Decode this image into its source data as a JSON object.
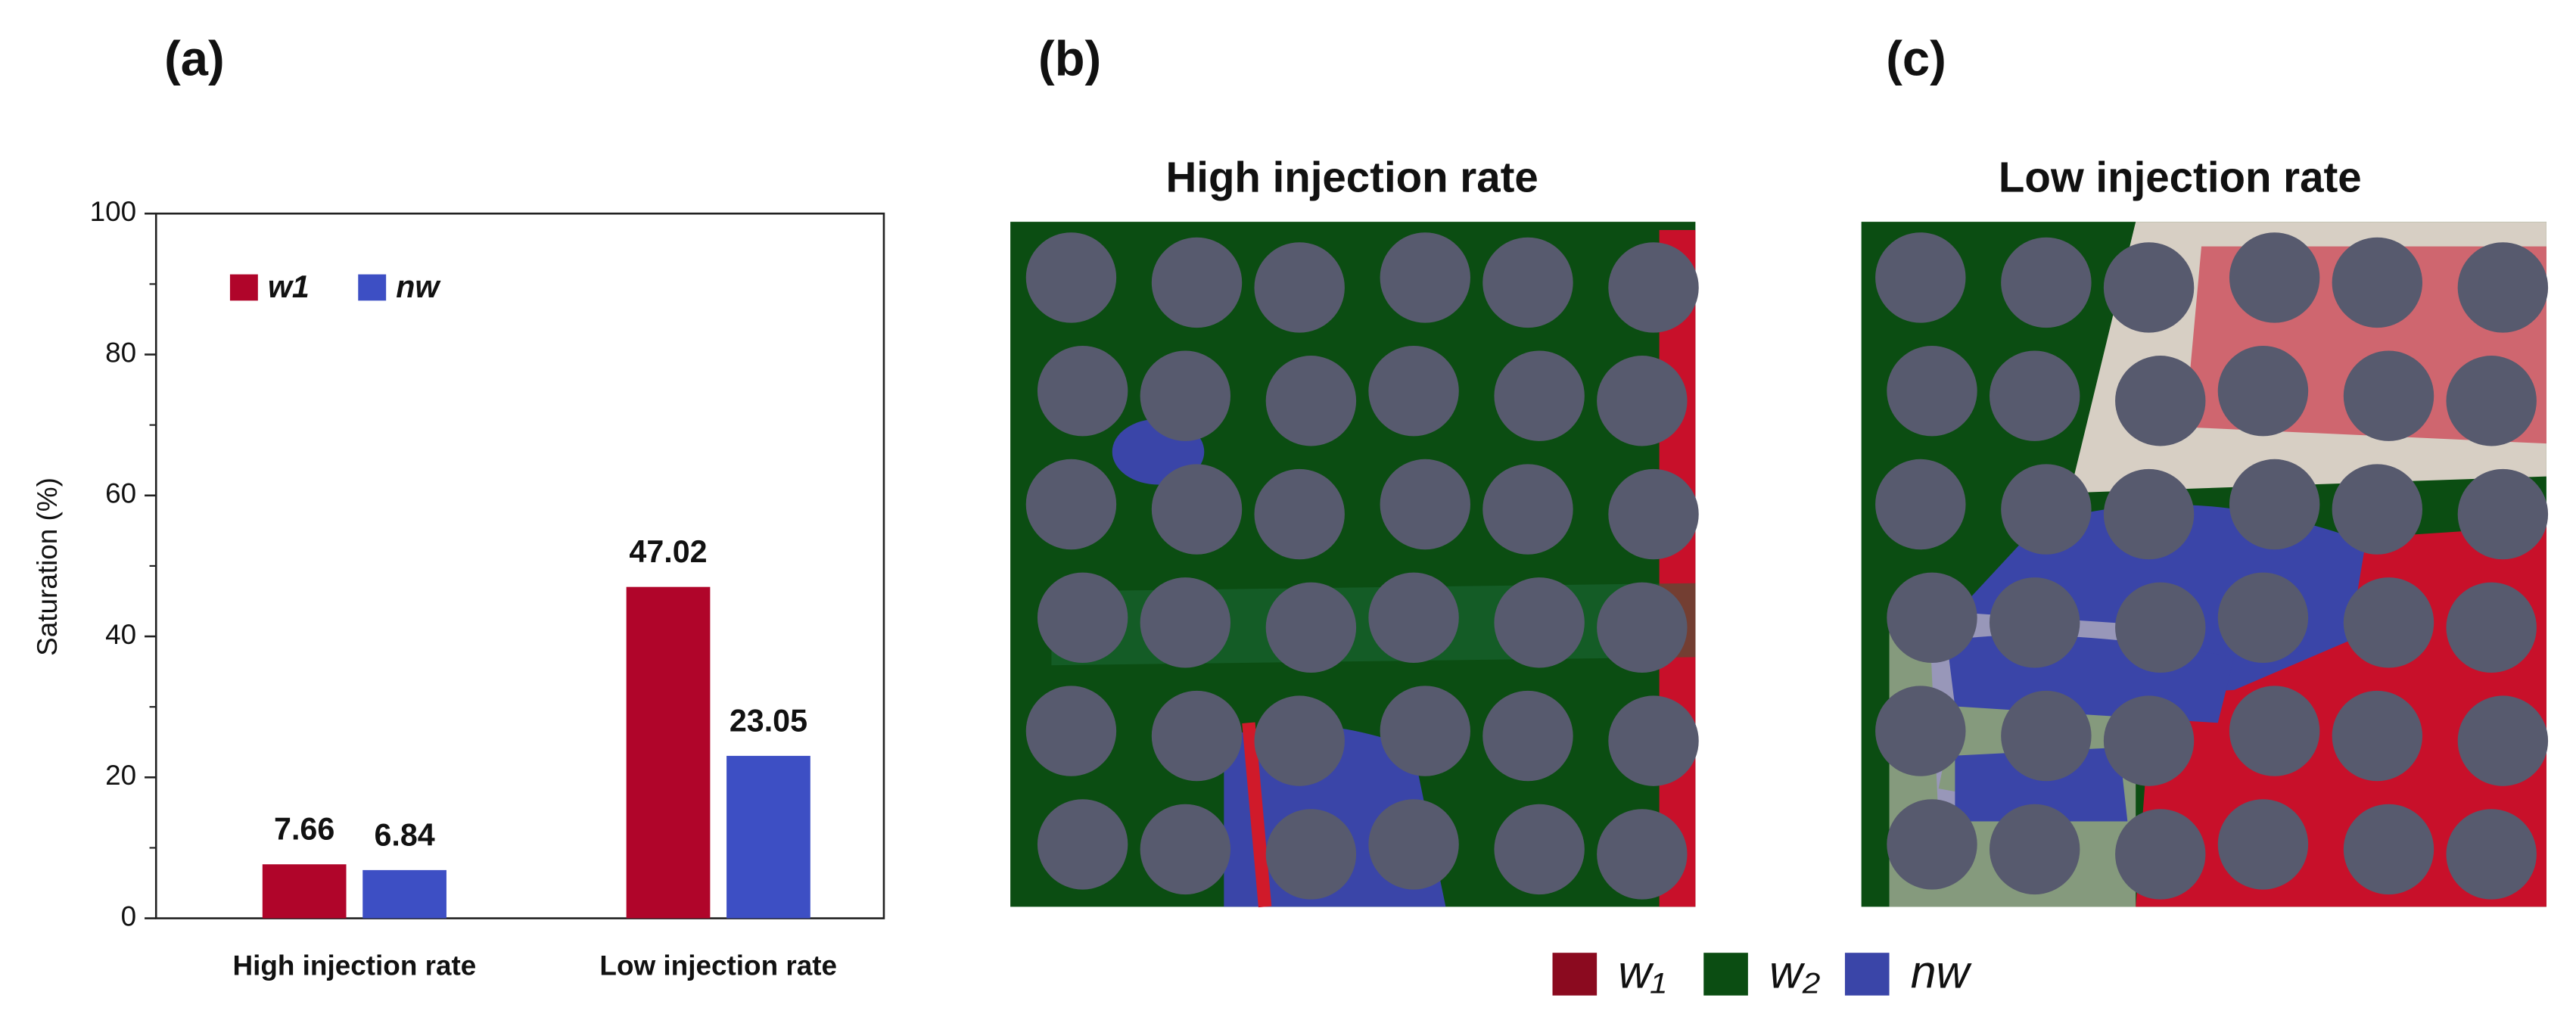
{
  "chart_data": {
    "type": "bar",
    "panel_label": "(a)",
    "ylabel": "Saturation (%)",
    "categories": [
      "High injection rate",
      "Low injection rate"
    ],
    "series": [
      {
        "name": "w1",
        "color": "#b0052a",
        "values": [
          7.66,
          47.02
        ]
      },
      {
        "name": "nw",
        "color": "#3d4fc4",
        "values": [
          6.84,
          23.05
        ]
      }
    ],
    "ylim": [
      0,
      100
    ],
    "yticks": [
      0,
      20,
      40,
      60,
      80,
      100
    ],
    "yminorticks": [
      10,
      30,
      50,
      70,
      90
    ],
    "legend": "upper left",
    "data_labels": true
  },
  "panels": [
    {
      "label": "(b)",
      "title": "High injection rate"
    },
    {
      "label": "(c)",
      "title": "Low injection rate"
    }
  ],
  "image_legend": [
    {
      "name": "w₁",
      "color": "#8b0a1f"
    },
    {
      "name": "w₂",
      "color": "#0b4d12"
    },
    {
      "name": "nw",
      "color": "#3a45a8"
    }
  ]
}
